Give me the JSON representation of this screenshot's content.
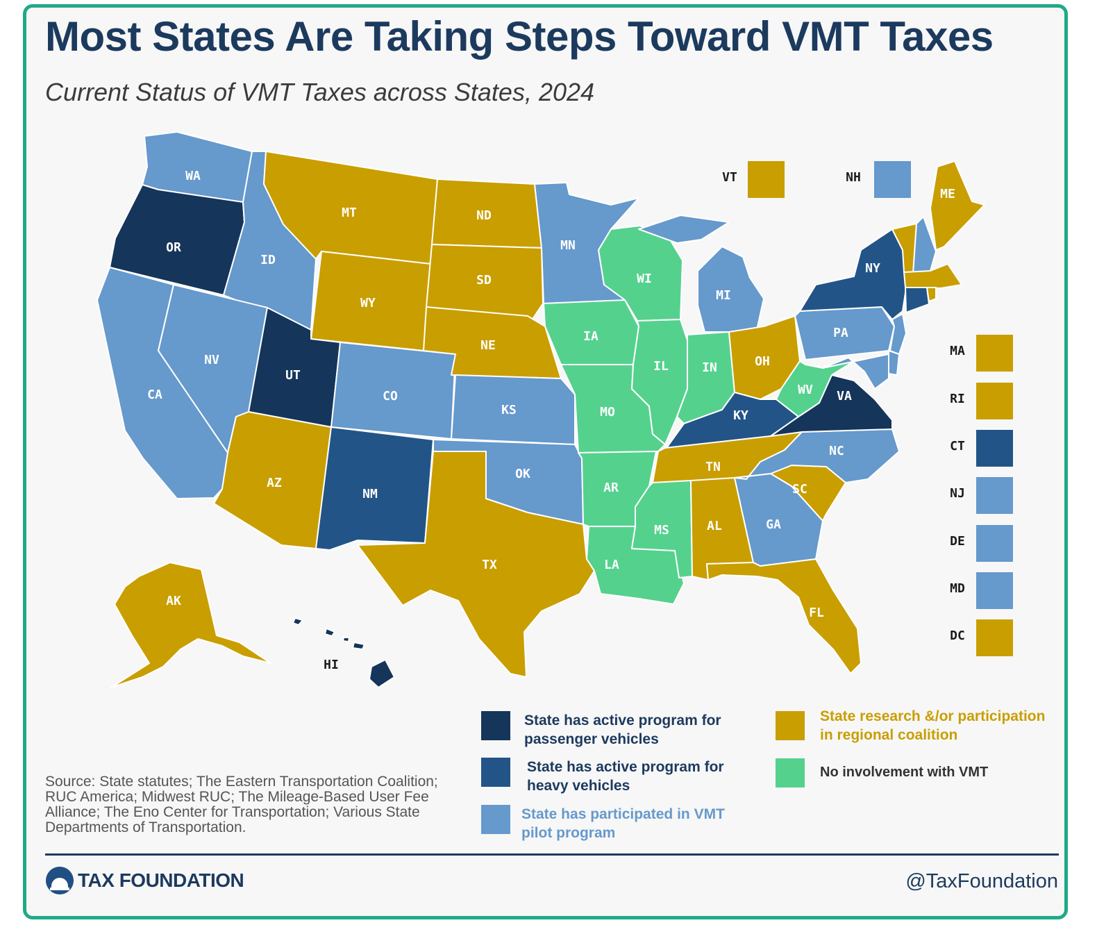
{
  "header": {
    "title": "Most States Are Taking Steps Toward VMT Taxes",
    "subtitle": "Current Status of VMT Taxes across States, 2024"
  },
  "colors": {
    "passenger": "#15355a",
    "heavy": "#225487",
    "pilot": "#6699cc",
    "research": "#c99e00",
    "none": "#55d18e",
    "frame": "#20a987"
  },
  "legend": [
    {
      "key": "passenger",
      "label_line1": "State has active program for",
      "label_line2": "passenger vehicles",
      "text_color": "#1c3a5e"
    },
    {
      "key": "heavy",
      "label_line1": "State has active program for",
      "label_line2": "heavy vehicles",
      "text_color": "#1c3a5e"
    },
    {
      "key": "pilot",
      "label_line1": "State has participated in VMT",
      "label_line2": "pilot program",
      "text_color": "#6699cc"
    },
    {
      "key": "research",
      "label_line1": "State research &/or participation",
      "label_line2": "in regional coalition",
      "text_color": "#c99e00"
    },
    {
      "key": "none",
      "label_line1": "No involvement with VMT",
      "label_line2": "",
      "text_color": "#333333"
    }
  ],
  "states": [
    {
      "abbr": "WA",
      "status": "pilot"
    },
    {
      "abbr": "OR",
      "status": "passenger"
    },
    {
      "abbr": "CA",
      "status": "pilot"
    },
    {
      "abbr": "ID",
      "status": "pilot"
    },
    {
      "abbr": "NV",
      "status": "pilot"
    },
    {
      "abbr": "MT",
      "status": "research"
    },
    {
      "abbr": "WY",
      "status": "research"
    },
    {
      "abbr": "UT",
      "status": "passenger"
    },
    {
      "abbr": "AZ",
      "status": "research"
    },
    {
      "abbr": "CO",
      "status": "pilot"
    },
    {
      "abbr": "NM",
      "status": "heavy"
    },
    {
      "abbr": "ND",
      "status": "research"
    },
    {
      "abbr": "SD",
      "status": "research"
    },
    {
      "abbr": "NE",
      "status": "research"
    },
    {
      "abbr": "KS",
      "status": "pilot"
    },
    {
      "abbr": "OK",
      "status": "pilot"
    },
    {
      "abbr": "TX",
      "status": "research"
    },
    {
      "abbr": "MN",
      "status": "pilot"
    },
    {
      "abbr": "IA",
      "status": "none"
    },
    {
      "abbr": "MO",
      "status": "none"
    },
    {
      "abbr": "AR",
      "status": "none"
    },
    {
      "abbr": "LA",
      "status": "none"
    },
    {
      "abbr": "WI",
      "status": "none"
    },
    {
      "abbr": "IL",
      "status": "none"
    },
    {
      "abbr": "MI",
      "status": "pilot"
    },
    {
      "abbr": "IN",
      "status": "none"
    },
    {
      "abbr": "OH",
      "status": "research"
    },
    {
      "abbr": "KY",
      "status": "heavy"
    },
    {
      "abbr": "TN",
      "status": "research"
    },
    {
      "abbr": "MS",
      "status": "none"
    },
    {
      "abbr": "AL",
      "status": "research"
    },
    {
      "abbr": "GA",
      "status": "pilot"
    },
    {
      "abbr": "FL",
      "status": "research"
    },
    {
      "abbr": "SC",
      "status": "research"
    },
    {
      "abbr": "NC",
      "status": "pilot"
    },
    {
      "abbr": "VA",
      "status": "passenger"
    },
    {
      "abbr": "WV",
      "status": "none"
    },
    {
      "abbr": "PA",
      "status": "pilot"
    },
    {
      "abbr": "NY",
      "status": "heavy"
    },
    {
      "abbr": "ME",
      "status": "research"
    },
    {
      "abbr": "AK",
      "status": "research"
    },
    {
      "abbr": "HI",
      "status": "passenger"
    }
  ],
  "small_states": [
    {
      "abbr": "VT",
      "status": "research"
    },
    {
      "abbr": "NH",
      "status": "pilot"
    },
    {
      "abbr": "MA",
      "status": "research"
    },
    {
      "abbr": "RI",
      "status": "research"
    },
    {
      "abbr": "CT",
      "status": "heavy"
    },
    {
      "abbr": "NJ",
      "status": "pilot"
    },
    {
      "abbr": "DE",
      "status": "pilot"
    },
    {
      "abbr": "MD",
      "status": "pilot"
    },
    {
      "abbr": "DC",
      "status": "research"
    }
  ],
  "source": "Source:  State statutes; The Eastern Transportation Coalition; RUC America; Midwest RUC; The Mileage-Based User Fee Alliance; The Eno Center for Transportation; Various State Departments of Transportation.",
  "footer": {
    "brand": "TAX FOUNDATION",
    "handle": "@TaxFoundation"
  }
}
